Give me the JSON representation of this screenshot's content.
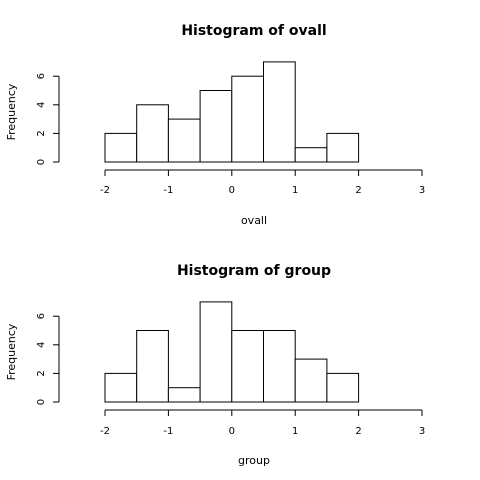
{
  "chart_data": [
    {
      "type": "bar",
      "title": "Histogram of ovall",
      "xlabel": "ovall",
      "ylabel": "Frequency",
      "bin_edges": [
        -2,
        -1.5,
        -1,
        -0.5,
        0,
        0.5,
        1,
        1.5,
        2
      ],
      "values": [
        2,
        4,
        3,
        5,
        6,
        7,
        1,
        2
      ],
      "xlim": [
        -2,
        3
      ],
      "ylim": [
        0,
        7
      ],
      "x_ticks": [
        -2,
        -1,
        0,
        1,
        2,
        3
      ],
      "y_ticks": [
        0,
        2,
        4,
        6
      ],
      "grid": false
    },
    {
      "type": "bar",
      "title": "Histogram of group",
      "xlabel": "group",
      "ylabel": "Frequency",
      "bin_edges": [
        -2,
        -1.5,
        -1,
        -0.5,
        0,
        0.5,
        1,
        1.5,
        2
      ],
      "values": [
        2,
        5,
        1,
        7,
        5,
        5,
        3,
        2
      ],
      "xlim": [
        -2,
        3
      ],
      "ylim": [
        0,
        7
      ],
      "x_ticks": [
        -2,
        -1,
        0,
        1,
        2,
        3
      ],
      "y_ticks": [
        0,
        2,
        4,
        6
      ],
      "grid": false
    }
  ]
}
